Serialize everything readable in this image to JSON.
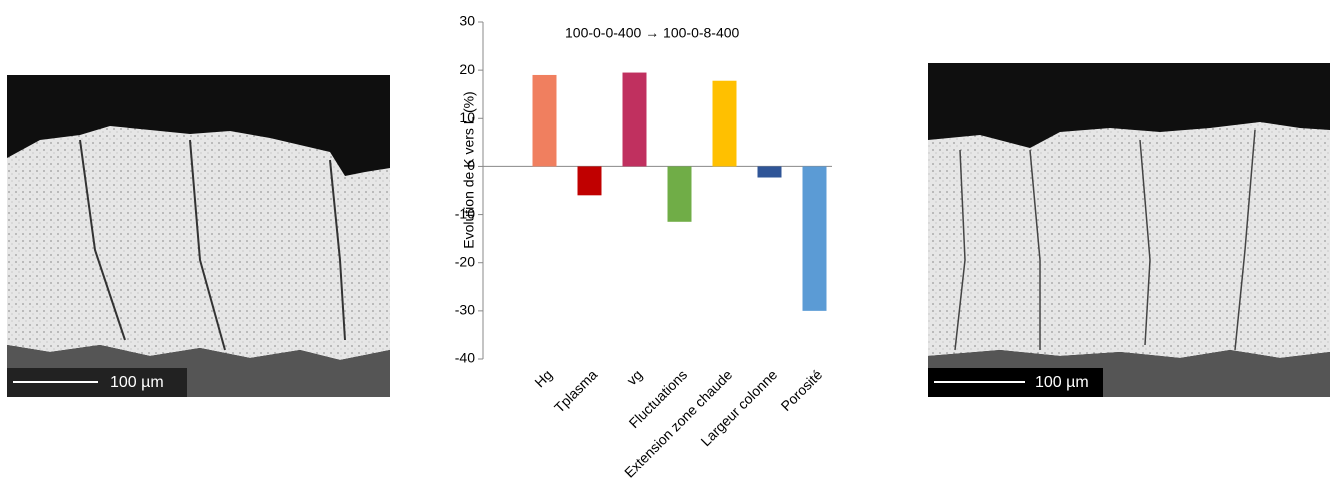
{
  "chart_data": {
    "type": "bar",
    "annotation": "100-0-0-400  → 100-0-8-400",
    "y_label": "Evolution de K vers L (%)",
    "categories": [
      "Hg",
      "Tplasma",
      "vg",
      "Fluctuations",
      "Extension zone chaude",
      "Largeur colonne",
      "Porosité"
    ],
    "values": [
      19,
      -6,
      19.5,
      -11.5,
      17.8,
      -2.3,
      -30
    ],
    "colors": [
      "#f07f5f",
      "#c00000",
      "#c0305f",
      "#70ad47",
      "#ffc000",
      "#2f5597",
      "#5b9bd5"
    ],
    "ylim": [
      -40,
      30
    ],
    "yticks": [
      -40,
      -30,
      -20,
      -10,
      0,
      10,
      20,
      30
    ]
  },
  "images": [
    {
      "scale_label": "100 µm"
    },
    {
      "scale_label": "100 µm"
    }
  ]
}
